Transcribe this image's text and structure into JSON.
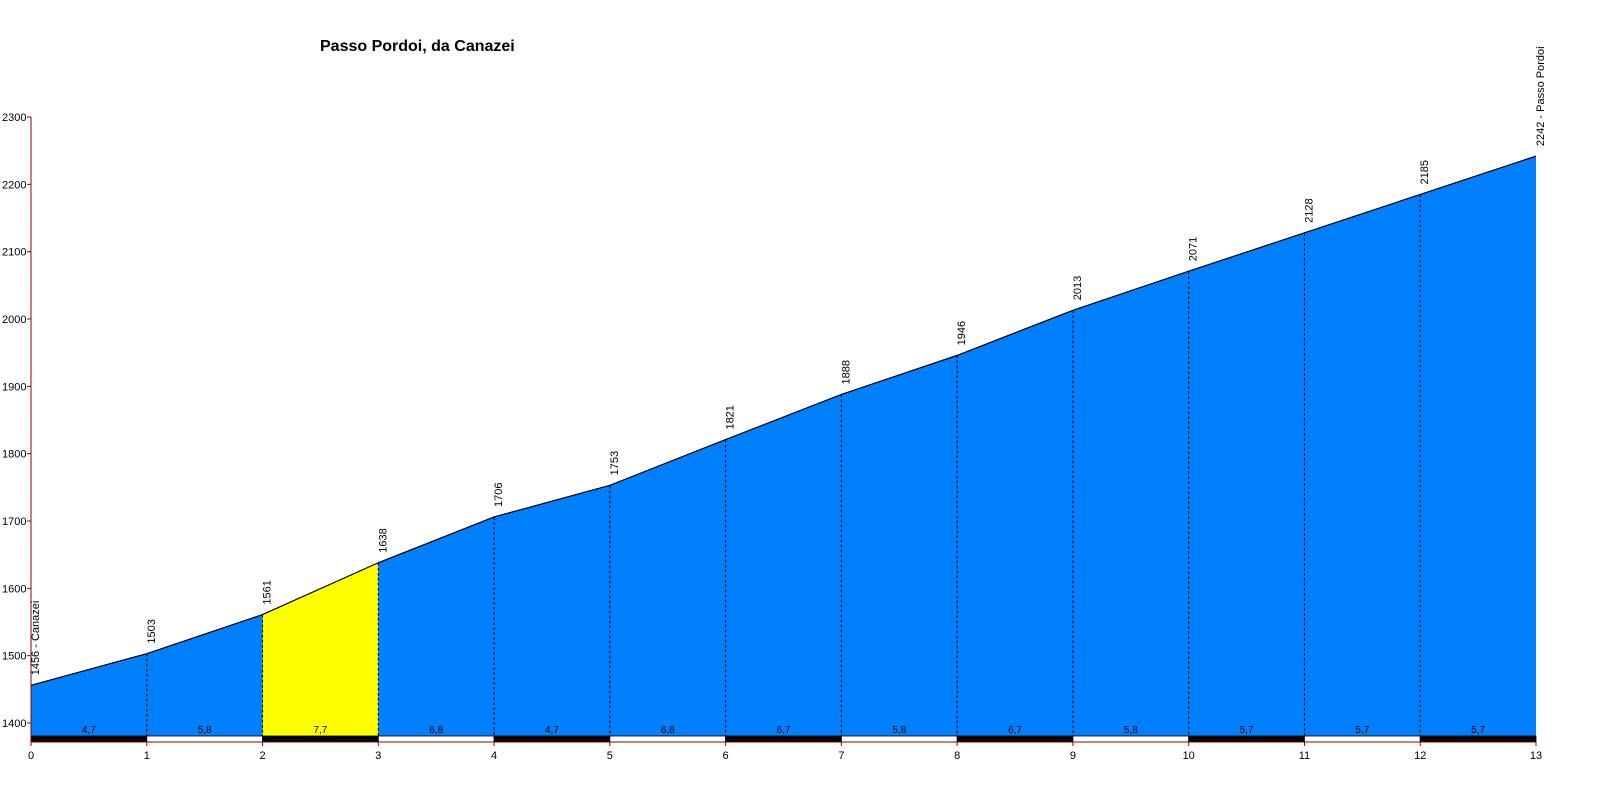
{
  "chart_data": {
    "type": "area",
    "title": "Passo Pordoi, da Canazei",
    "xlabel": "",
    "ylabel": "",
    "xlim": [
      0,
      13
    ],
    "ylim": [
      1380,
      2300
    ],
    "grid": false,
    "x": [
      0,
      1,
      2,
      3,
      4,
      5,
      6,
      7,
      8,
      9,
      10,
      11,
      12,
      13
    ],
    "x_ticks": [
      "0",
      "1",
      "2",
      "3",
      "4",
      "5",
      "6",
      "7",
      "8",
      "9",
      "10",
      "11",
      "12",
      "13"
    ],
    "y_ticks": [
      1400,
      1500,
      1600,
      1700,
      1800,
      1900,
      2000,
      2100,
      2200,
      2300
    ],
    "elevations": [
      1456,
      1503,
      1561,
      1638,
      1706,
      1753,
      1821,
      1888,
      1946,
      2013,
      2071,
      2128,
      2185,
      2242
    ],
    "point_labels": [
      "1456 - Canazei",
      "1503",
      "1561",
      "1638",
      "1706",
      "1753",
      "1821",
      "1888",
      "1946",
      "2013",
      "2071",
      "2128",
      "2185",
      "2242 - Passo Pordoi"
    ],
    "gradients": [
      "4,7",
      "5,8",
      "7,7",
      "6,8",
      "4,7",
      "6,8",
      "6,7",
      "5,8",
      "6,7",
      "5,8",
      "5,7",
      "5,7",
      "5,7"
    ],
    "highlight_segment": 2,
    "colors": {
      "fill": "#0080FF",
      "highlight": "#FFFF00",
      "outline": "#000000",
      "axis": "#8B0000",
      "bar_dark": "#000000",
      "bar_light": "#FFFFFF"
    }
  }
}
